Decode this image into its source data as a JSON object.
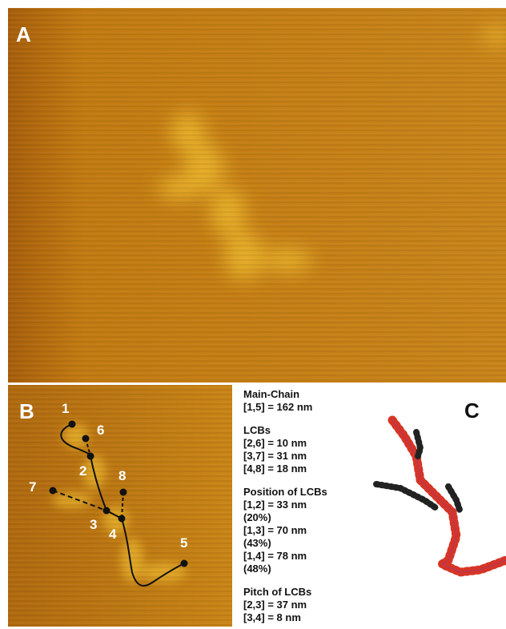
{
  "panels": [
    {
      "label": "A"
    },
    {
      "label": "B"
    },
    {
      "label": "C"
    }
  ],
  "nodes": [
    {
      "label": "1"
    },
    {
      "label": "2"
    },
    {
      "label": "3"
    },
    {
      "label": "4"
    },
    {
      "label": "5"
    },
    {
      "label": "6"
    },
    {
      "label": "7"
    },
    {
      "label": "8"
    }
  ],
  "sections": [
    {
      "title": "Main-Chain",
      "lines": [
        "[1,5] = 162 nm"
      ]
    },
    {
      "title": "LCBs",
      "lines": [
        "[2,6] = 10 nm",
        "[3,7] = 31 nm",
        "[4,8] = 18 nm"
      ]
    },
    {
      "title": "Position of LCBs",
      "lines": [
        "[1,2] = 33 nm",
        "(20%)",
        "[1,3] = 70 nm",
        "(43%)",
        "[1,4] = 78 nm",
        "(48%)"
      ]
    },
    {
      "title": "Pitch of LCBs",
      "lines": [
        "[2,3] = 37 nm",
        "[3,4] = 8 nm"
      ]
    }
  ]
}
